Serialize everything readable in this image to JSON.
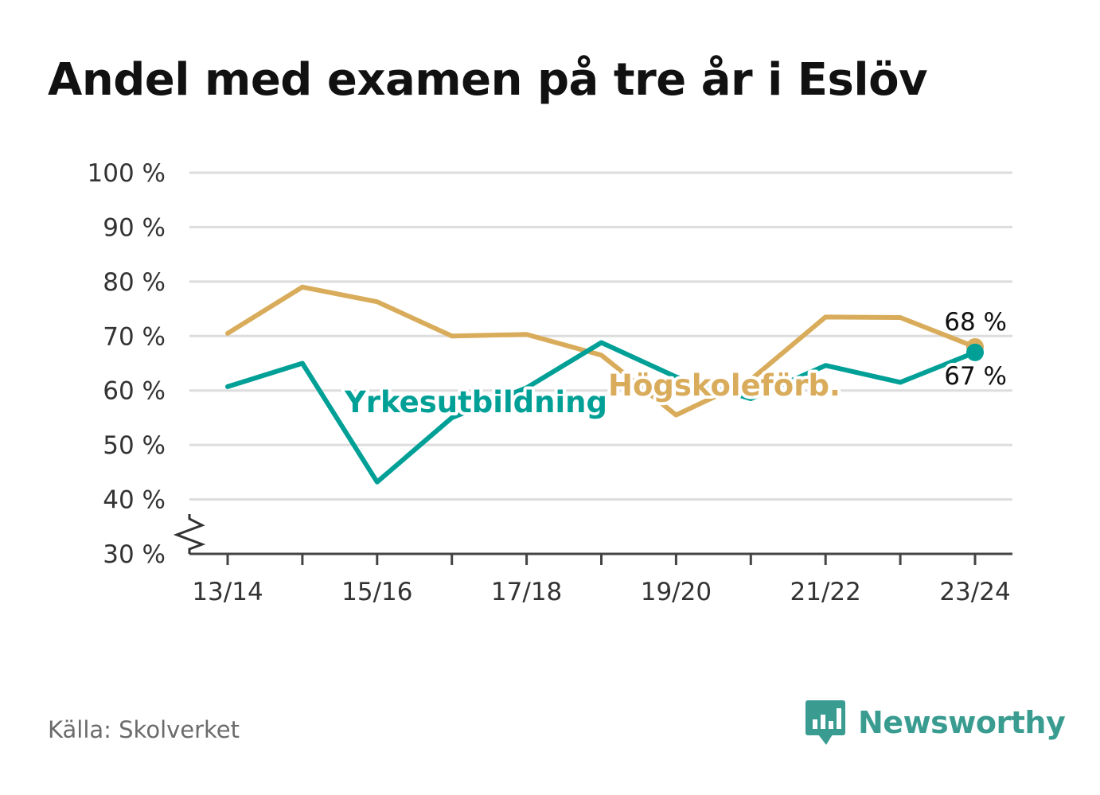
{
  "title": "Andel med examen på tre år i Eslöv",
  "source": "Källa: Skolverket",
  "brand": {
    "name": "Newsworthy",
    "icon": "newsworthy-logo-icon",
    "color": "#3a9c90"
  },
  "chart_data": {
    "type": "line",
    "title": "Andel med examen på tre år i Eslöv",
    "xlabel": "",
    "ylabel": "",
    "categories": [
      "13/14",
      "14/15",
      "15/16",
      "16/17",
      "17/18",
      "18/19",
      "19/20",
      "20/21",
      "21/22",
      "22/23",
      "23/24"
    ],
    "x_tick_labels": [
      "13/14",
      "15/16",
      "17/18",
      "19/20",
      "21/22",
      "23/24"
    ],
    "y_tick_labels": [
      "30 %",
      "40 %",
      "50 %",
      "60 %",
      "70 %",
      "80 %",
      "90 %",
      "100 %"
    ],
    "ylim": [
      30,
      100
    ],
    "y_axis_break": true,
    "grid": true,
    "series": [
      {
        "name": "Högskoleförb.",
        "color": "#d9ac5b",
        "values": [
          70.5,
          79,
          76.3,
          70,
          70.3,
          66.5,
          55.5,
          62,
          73.5,
          73.4,
          68
        ],
        "end_label": "68 %"
      },
      {
        "name": "Yrkesutbildning",
        "color": "#00a097",
        "values": [
          60.7,
          65,
          43.2,
          55,
          60.5,
          68.8,
          62.5,
          58.5,
          64.6,
          61.5,
          67
        ],
        "end_label": "67 %"
      }
    ]
  }
}
